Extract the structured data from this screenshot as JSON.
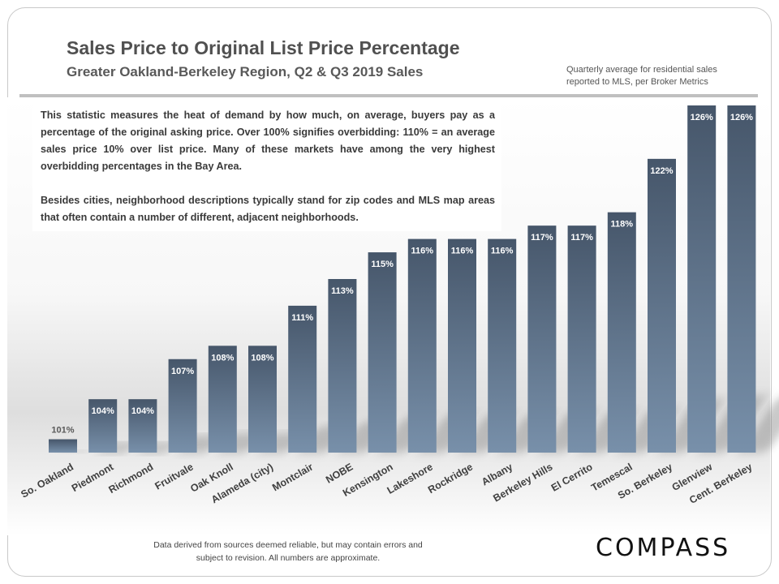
{
  "header": {
    "title": "Sales Price to Original List Price Percentage",
    "subtitle": "Greater Oakland-Berkeley  Region, Q2 & Q3 2019 Sales",
    "note_line1": "Quarterly average for residential  sales",
    "note_line2": "reported to MLS, per Broker Metrics"
  },
  "description": {
    "paragraph1": "This statistic measures the heat of demand by how much, on average, buyers pay as a percentage of the original asking price. Over 100% signifies overbidding: 110% = an average sales price 10% over list price. Many of these markets have among the very highest overbidding percentages in the Bay Area.",
    "paragraph2": "Besides cities, neighborhood descriptions typically stand for zip codes and MLS map areas that often contain a number of different, adjacent neighborhoods."
  },
  "footer": {
    "disclaimer_line1": "Data derived from sources deemed reliable, but may contain errors and",
    "disclaimer_line2": "subject to revision.  All numbers are approximate.",
    "logo": "COMPASS"
  },
  "colors": {
    "bar_top": "#46566a",
    "bar_bottom": "#7890aa",
    "label_inside": "#ffffff",
    "label_outside": "#595959"
  },
  "chart_data": {
    "type": "bar",
    "title": "Sales Price to Original List Price Percentage",
    "subtitle": "Greater Oakland-Berkeley  Region, Q2 & Q3 2019 Sales",
    "xlabel": "",
    "ylabel": "",
    "unit": "%",
    "ylim": [
      100,
      126
    ],
    "grid": false,
    "legend": "none",
    "categories": [
      "So. Oakland",
      "Piedmont",
      "Richmond",
      "Fruitvale",
      "Oak Knoll",
      "Alameda (city)",
      "Montclair",
      "NOBE",
      "Kensington",
      "Lakeshore",
      "Rockridge",
      "Albany",
      "Berkeley Hills",
      "El Cerrito",
      "Temescal",
      "So. Berkeley",
      "Glenview",
      "Cent. Berkeley"
    ],
    "values": [
      101,
      104,
      104,
      107,
      108,
      108,
      111,
      113,
      115,
      116,
      116,
      116,
      117,
      117,
      118,
      122,
      126,
      126
    ],
    "data_labels": [
      "101%",
      "104%",
      "104%",
      "107%",
      "108%",
      "108%",
      "111%",
      "113%",
      "115%",
      "116%",
      "116%",
      "116%",
      "117%",
      "117%",
      "118%",
      "122%",
      "126%",
      "126%"
    ]
  }
}
